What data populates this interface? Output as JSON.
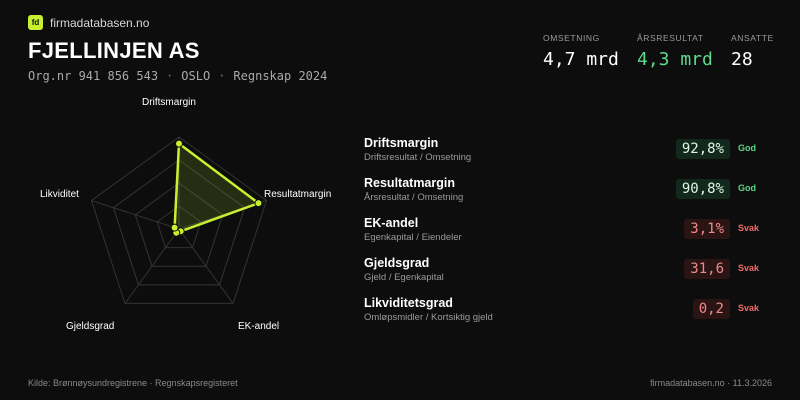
{
  "brand": {
    "logo_text": "fd",
    "name": "firmadatabasen.no",
    "accent": "#c8f031"
  },
  "company": {
    "name": "FJELLINJEN AS",
    "org": "Org.nr 941 856 543",
    "city": "OSLO",
    "accounts": "Regnskap 2024",
    "separator": "·"
  },
  "kpis": [
    {
      "label": "OMSETNING",
      "value": "4,7 mrd"
    },
    {
      "label": "ÅRSRESULTAT",
      "value": "4,3 mrd"
    },
    {
      "label": "ANSATTE",
      "value": "28"
    }
  ],
  "radar": {
    "axes": [
      "Driftsmargin",
      "Resultatmargin",
      "EK-andel",
      "Gjeldsgrad",
      "Likviditet"
    ],
    "scores": [
      0.928,
      0.908,
      0.031,
      0.05,
      0.05
    ],
    "colors": {
      "line": "#c8f031",
      "grid": "#333333"
    }
  },
  "metrics": [
    {
      "name": "Driftsmargin",
      "formula": "Driftsresultat / Omsetning",
      "value": "92,8%",
      "status": "God",
      "tone": "good"
    },
    {
      "name": "Resultatmargin",
      "formula": "Årsresultat / Omsetning",
      "value": "90,8%",
      "status": "God",
      "tone": "good"
    },
    {
      "name": "EK-andel",
      "formula": "Egenkapital / Eiendeler",
      "value": "3,1%",
      "status": "Svak",
      "tone": "weak"
    },
    {
      "name": "Gjeldsgrad",
      "formula": "Gjeld / Egenkapital",
      "value": "31,6",
      "status": "Svak",
      "tone": "weak"
    },
    {
      "name": "Likviditetsgrad",
      "formula": "Omløpsmidler / Kortsiktig gjeld",
      "value": "0,2",
      "status": "Svak",
      "tone": "weak"
    }
  ],
  "footer": {
    "source": "Kilde: Brønnøysundregistrene · Regnskapsregisteret",
    "site_date": "firmadatabasen.no · 11.3.2026"
  }
}
